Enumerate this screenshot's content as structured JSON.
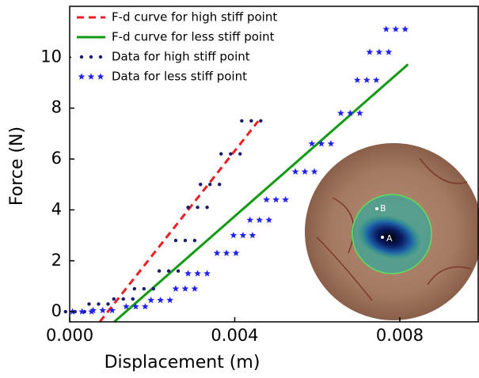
{
  "chart_data": {
    "type": "line",
    "xlabel": "Displacement (m)",
    "ylabel": "Force (N)",
    "xlim": [
      0,
      0.0099
    ],
    "ylim": [
      -0.4,
      12
    ],
    "xticks": [
      {
        "value": 0,
        "label": "0.000"
      },
      {
        "value": 0.004,
        "label": "0.004"
      },
      {
        "value": 0.008,
        "label": "0.008"
      }
    ],
    "yticks": [
      0,
      2,
      4,
      6,
      8,
      10
    ],
    "legend": "upper left",
    "series": [
      {
        "name": "F-d curve for high stiff point",
        "color": "#ee1c24",
        "style": "dashed",
        "x": [
          0.00073,
          0.00457
        ],
        "values": [
          -0.4,
          7.49
        ]
      },
      {
        "name": "F-d curve for less stiff point",
        "color": "#109a10",
        "style": "solid",
        "x": [
          0.00108,
          0.0082
        ],
        "values": [
          -0.4,
          9.72
        ]
      },
      {
        "name": "Data for high stiff point",
        "color": "#1a1a6e",
        "style": "dots",
        "x": [
          0.00013,
          0.0007,
          0.0013,
          0.0018,
          0.0024,
          0.0028,
          0.0031,
          0.0034,
          0.0039,
          0.0044
        ],
        "values": [
          0,
          0.3,
          0.5,
          0.9,
          1.6,
          2.8,
          4.1,
          5.0,
          6.2,
          7.5
        ]
      },
      {
        "name": "Data for less stiff point",
        "color": "#2222ee",
        "style": "stars",
        "x": [
          0.0003,
          0.0008,
          0.0016,
          0.0022,
          0.0028,
          0.0031,
          0.0038,
          0.0042,
          0.0046,
          0.005,
          0.0057,
          0.0061,
          0.0068,
          0.0072,
          0.0075,
          0.0079
        ],
        "values": [
          0,
          0.05,
          0.2,
          0.45,
          0.9,
          1.5,
          2.3,
          3.0,
          3.6,
          4.4,
          5.5,
          6.6,
          7.8,
          9.1,
          10.2,
          11.1
        ]
      }
    ]
  },
  "inset_labels": [
    "A",
    "B"
  ]
}
